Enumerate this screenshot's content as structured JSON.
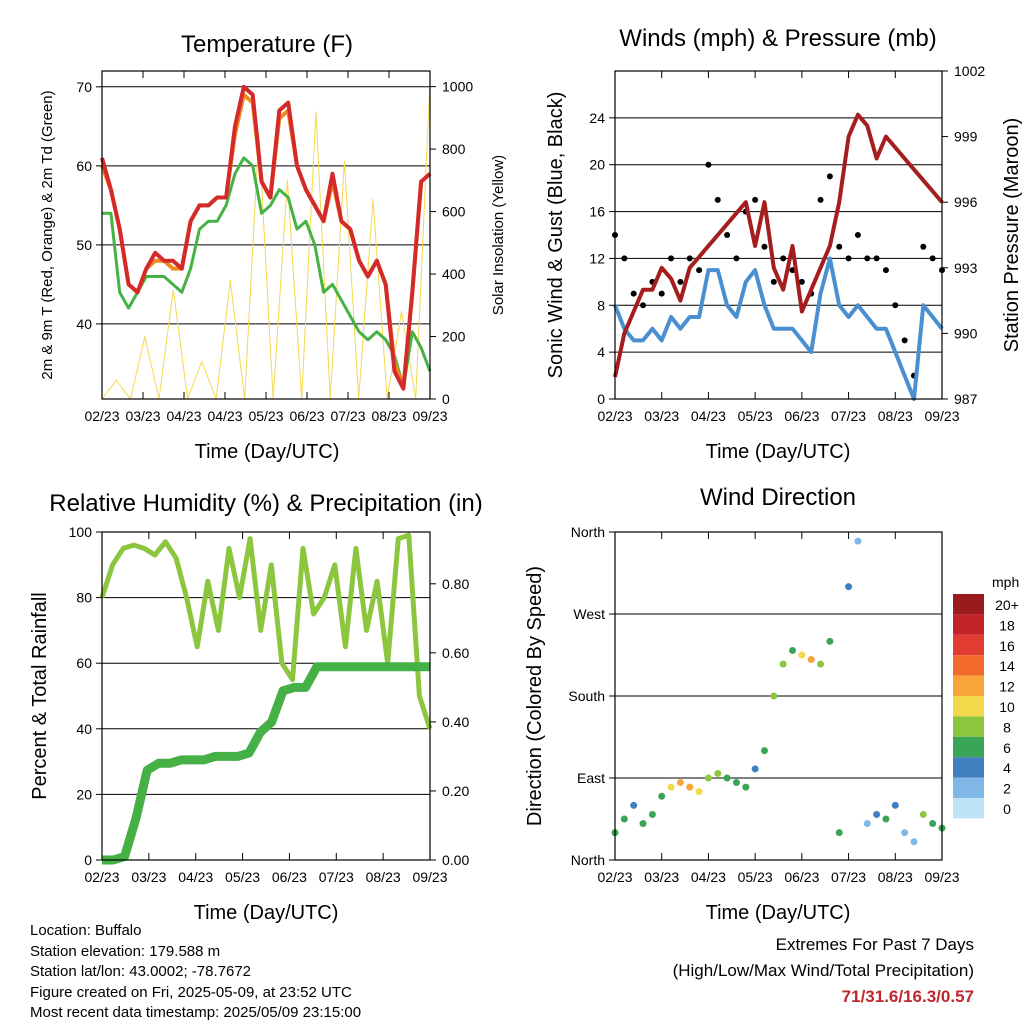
{
  "footer": {
    "location": "Location: Buffalo",
    "elevation": "Station elevation: 179.588 m",
    "latlon": "Station lat/lon: 43.0002; -78.7672",
    "created": "Figure created on Fri, 2025-05-09, at 23:52 UTC",
    "recent": "Most recent data timestamp: 2025/05/09 23:15:00",
    "extremes_title": "Extremes For Past 7 Days",
    "extremes_sub": "(High/Low/Max Wind/Total Precipitation)",
    "extremes_values": "71/31.6/16.3/0.57",
    "extremes_color": "#c0262d"
  },
  "chart_data": [
    {
      "type": "line",
      "title": "Temperature (F)",
      "xlabel": "Time (Day/UTC)",
      "ylabel": "2m & 9m T (Red, Orange) & 2m Td (Green)",
      "y2label": "Solar Insolation (Yellow)",
      "x_ticks": [
        "02/23",
        "03/23",
        "04/23",
        "04/23",
        "05/23",
        "06/23",
        "07/23",
        "08/23",
        "09/23"
      ],
      "ylim": [
        30.5,
        72
      ],
      "y_ticks": [
        40,
        50,
        60,
        70
      ],
      "y2lim": [
        0,
        1050
      ],
      "y2_ticks": [
        0,
        200,
        400,
        600,
        800,
        1000
      ],
      "series": [
        {
          "color": "#d42a2a",
          "values": [
            61,
            57,
            52,
            45,
            44,
            47,
            49,
            48,
            48,
            47,
            53,
            55,
            55,
            56,
            56,
            65,
            70,
            69,
            58,
            56,
            67,
            68,
            60,
            57,
            55,
            53,
            59,
            53,
            52,
            48,
            46,
            48,
            45,
            34,
            31.8,
            44,
            58,
            59
          ]
        },
        {
          "color": "#f28a1e",
          "values": [
            60,
            57,
            52,
            45,
            44,
            47,
            48,
            48,
            47,
            47,
            53,
            55,
            55,
            56,
            56,
            64,
            69,
            68,
            58,
            56,
            66,
            67,
            60,
            57,
            55,
            53,
            58,
            53,
            52,
            48,
            46,
            48,
            45,
            35,
            32,
            44,
            58,
            59
          ]
        },
        {
          "color": "#44b244",
          "values": [
            54,
            54,
            44,
            42,
            44,
            46,
            46,
            46,
            45,
            44,
            47,
            52,
            53,
            53,
            55,
            59,
            61,
            60,
            54,
            55,
            57,
            56,
            52,
            53,
            50,
            44,
            45,
            43,
            41,
            39,
            38,
            39,
            38,
            36,
            32,
            39,
            37,
            34
          ]
        },
        {
          "color": "#f5d84e",
          "axis": "y2",
          "values": [
            0,
            60,
            0,
            200,
            0,
            350,
            0,
            120,
            0,
            380,
            0,
            850,
            0,
            700,
            0,
            920,
            0,
            760,
            0,
            640,
            0,
            280,
            0,
            1020
          ]
        }
      ]
    },
    {
      "type": "scatter",
      "title": "Winds (mph) & Pressure (mb)",
      "xlabel": "Time (Day/UTC)",
      "ylabel": "Sonic Wind & Gust (Blue, Black)",
      "y2label": "Station Pressure (Maroon)",
      "x_ticks": [
        "02/23",
        "03/23",
        "04/23",
        "05/23",
        "06/23",
        "07/23",
        "08/23",
        "09/23"
      ],
      "ylim": [
        0,
        28
      ],
      "y_ticks": [
        0,
        4,
        8,
        12,
        16,
        20,
        24
      ],
      "y2lim": [
        987,
        1002
      ],
      "y2_ticks": [
        987,
        990,
        993,
        996,
        999,
        1002
      ],
      "series": [
        {
          "color": "#000000",
          "values": [
            14,
            12,
            9,
            8,
            10,
            9,
            12,
            10,
            12,
            11,
            20,
            17,
            14,
            12,
            16,
            17,
            13,
            10,
            12,
            11,
            10,
            9,
            17,
            19,
            13,
            12,
            14,
            12,
            12,
            11,
            8,
            5,
            2,
            13,
            12,
            11
          ]
        },
        {
          "color": "#4a90d0",
          "values": [
            8,
            6,
            5,
            5,
            6,
            5,
            7,
            6,
            7,
            7,
            11,
            11,
            8,
            7,
            10,
            11,
            8,
            6,
            6,
            6,
            5,
            4,
            9,
            12,
            8,
            7,
            8,
            7,
            6,
            6,
            4,
            2,
            0,
            8,
            7,
            6
          ]
        },
        {
          "color": "#a51d1d",
          "axis": "y2",
          "values": [
            988,
            990,
            991,
            992,
            992,
            993,
            992.5,
            991.5,
            993,
            993.5,
            994,
            994.5,
            995,
            995.5,
            996,
            994,
            996,
            993,
            992,
            994,
            991,
            992,
            993,
            994,
            996,
            999,
            1000,
            999.5,
            998,
            999,
            998.5,
            998,
            997.5,
            997,
            996.5,
            996
          ]
        }
      ]
    },
    {
      "type": "line",
      "title": "Relative Humidity (%) & Precipitation (in)",
      "xlabel": "Time (Day/UTC)",
      "ylabel": "Percent & Total Rainfall",
      "x_ticks": [
        "02/23",
        "03/23",
        "04/23",
        "05/23",
        "06/23",
        "07/23",
        "08/23",
        "09/23"
      ],
      "ylim": [
        0,
        100
      ],
      "y_ticks": [
        0,
        20,
        40,
        60,
        80,
        100
      ],
      "y2lim": [
        0,
        0.95
      ],
      "y2_ticks": [
        "0.00",
        "0.20",
        "0.40",
        "0.60",
        "0.80"
      ],
      "series": [
        {
          "color": "#8cc63f",
          "values": [
            80,
            90,
            95,
            96,
            95,
            93,
            97,
            92,
            80,
            65,
            85,
            70,
            95,
            80,
            98,
            70,
            90,
            60,
            55,
            95,
            75,
            80,
            90,
            65,
            95,
            70,
            85,
            60,
            98,
            99,
            50,
            40
          ]
        },
        {
          "color": "#45b045",
          "axis": "y2",
          "values": [
            0,
            0,
            0.01,
            0.12,
            0.26,
            0.28,
            0.28,
            0.29,
            0.29,
            0.29,
            0.3,
            0.3,
            0.3,
            0.31,
            0.37,
            0.4,
            0.49,
            0.5,
            0.5,
            0.56,
            0.56,
            0.56,
            0.56,
            0.56,
            0.56,
            0.56,
            0.56,
            0.56,
            0.56,
            0.56
          ]
        }
      ]
    },
    {
      "type": "scatter",
      "title": "Wind Direction",
      "xlabel": "Time (Day/UTC)",
      "ylabel": "Direction (Colored By Speed)",
      "x_ticks": [
        "02/23",
        "03/23",
        "04/23",
        "05/23",
        "06/23",
        "07/23",
        "08/23",
        "09/23"
      ],
      "y_ticks": [
        "North",
        "East",
        "South",
        "West",
        "North"
      ],
      "legend_title": "mph",
      "legend_labels": [
        "20+",
        "18",
        "16",
        "14",
        "12",
        "10",
        "8",
        "6",
        "4",
        "2",
        "0"
      ],
      "legend_colors": [
        "#9a1b1e",
        "#c4232a",
        "#e03c31",
        "#f26b2a",
        "#f9a43a",
        "#f2d94b",
        "#8cc63f",
        "#3aa457",
        "#3f7fc0",
        "#7fb7e6",
        "#bfe4f7"
      ],
      "series": [
        {
          "name": "direction_deg",
          "values": [
            30,
            45,
            60,
            40,
            50,
            70,
            80,
            85,
            80,
            75,
            90,
            95,
            90,
            85,
            80,
            100,
            120,
            180,
            215,
            230,
            225,
            220,
            215,
            240,
            30,
            300,
            350,
            40,
            50,
            45,
            60,
            30,
            20,
            50,
            40,
            35
          ]
        },
        {
          "name": "speed_mph",
          "values": [
            6,
            5,
            4,
            5,
            6,
            6,
            10,
            12,
            11,
            10,
            8,
            7,
            6,
            5,
            5,
            4,
            6,
            8,
            7,
            6,
            10,
            12,
            8,
            6,
            5,
            4,
            2,
            1,
            4,
            6,
            3,
            2,
            1,
            7,
            6,
            5
          ]
        }
      ]
    }
  ]
}
